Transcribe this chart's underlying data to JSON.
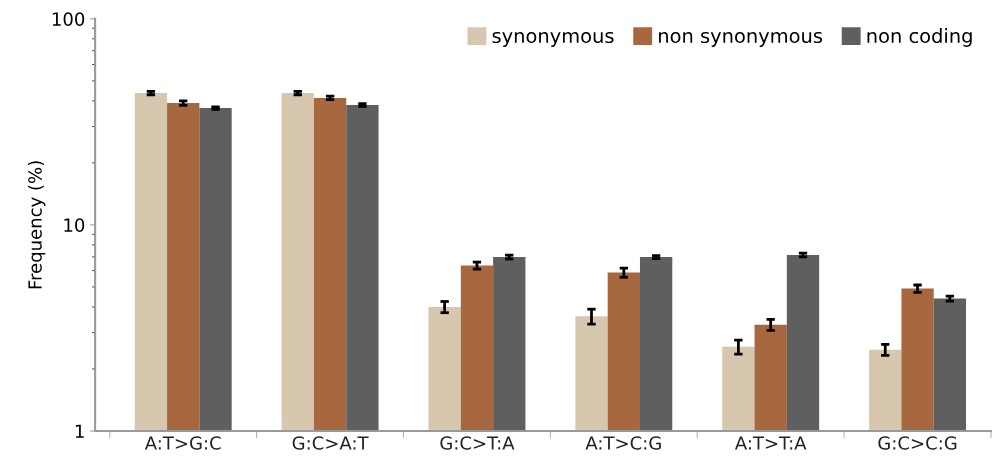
{
  "chart_data": {
    "type": "bar",
    "ylabel": "Frequency (%)",
    "log": true,
    "ylim": [
      1,
      100
    ],
    "yticks": [
      1,
      10,
      100
    ],
    "grid": false,
    "legend": "top right",
    "categories": [
      "A:T>G:C",
      "G:C>A:T",
      "G:C>T:A",
      "A:T>C:G",
      "A:T>T:A",
      "G:C>C:G"
    ],
    "series": [
      {
        "name": "synonymous",
        "color": "#d6c7ae",
        "values": [
          43.6,
          43.6,
          4.0,
          3.6,
          2.56,
          2.48
        ],
        "errors": [
          0.8,
          0.8,
          0.25,
          0.3,
          0.2,
          0.15
        ]
      },
      {
        "name": "non synonymous",
        "color": "#a8683f",
        "values": [
          39,
          41.3,
          6.35,
          5.87,
          3.28,
          4.91
        ],
        "errors": [
          1.0,
          0.8,
          0.25,
          0.3,
          0.2,
          0.2
        ]
      },
      {
        "name": "non coding",
        "color": "#5f5f5f",
        "values": [
          36.9,
          38.2,
          6.98,
          6.98,
          7.14,
          4.39
        ],
        "errors": [
          0.5,
          0.6,
          0.15,
          0.12,
          0.15,
          0.12
        ]
      }
    ]
  }
}
